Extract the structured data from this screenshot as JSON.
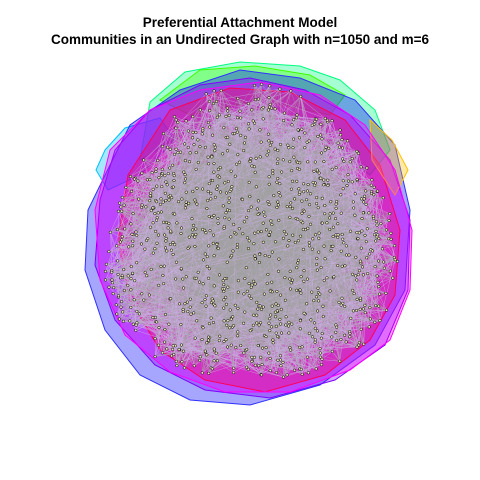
{
  "figure": {
    "title_line1": "Preferential Attachment Model",
    "title_line2": "Communities in an Undirected Graph with n=1050 and m=6"
  },
  "graph": {
    "n": 1050,
    "m": 6,
    "directed": false,
    "vertex_fill": "#e8e2b8",
    "vertex_stroke": "#000000",
    "edge_color": "#a3a3a3",
    "intra_edge_color": "#c8aee0",
    "communities": [
      {
        "fill": "#ff00ff",
        "stroke": "#ff00ff"
      },
      {
        "fill": "#8000ff",
        "stroke": "#8000ff"
      },
      {
        "fill": "#0000ff",
        "stroke": "#3030ff"
      },
      {
        "fill": "#00c0ff",
        "stroke": "#00c0ff"
      },
      {
        "fill": "#00ff80",
        "stroke": "#00ff80"
      },
      {
        "fill": "#40ff00",
        "stroke": "#40ff00"
      },
      {
        "fill": "#ff0000",
        "stroke": "#ff0000"
      },
      {
        "fill": "#ffc000",
        "stroke": "#ffc000"
      }
    ]
  }
}
